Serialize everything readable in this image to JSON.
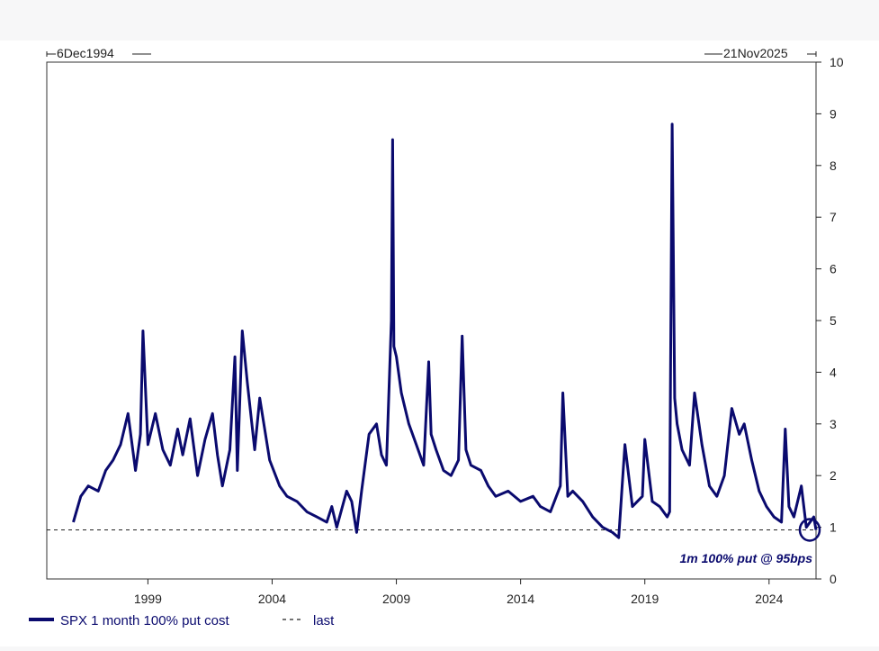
{
  "chart_data": {
    "type": "line",
    "start_label": "6Dec1994",
    "end_label": "21Nov2025",
    "x_range": [
      1994.93,
      2025.89
    ],
    "ylim": [
      0,
      10
    ],
    "y_ticks": [
      0,
      1,
      2,
      3,
      4,
      5,
      6,
      7,
      8,
      9,
      10
    ],
    "x_ticks": [
      1999,
      2004,
      2009,
      2014,
      2019,
      2024
    ],
    "x_tick_labels": [
      "1999",
      "2004",
      "2009",
      "2014",
      "2019",
      "2024"
    ],
    "reference_line": {
      "name": "last",
      "value": 0.95,
      "style": "dashed"
    },
    "annotation": "1m 100% put @ 95bps",
    "legend_position": "bottom-left",
    "grid": false,
    "series": [
      {
        "name": "SPX 1 month 100% put cost",
        "color": "#0a0a6e",
        "x": [
          1996.0,
          1996.3,
          1996.6,
          1997.0,
          1997.3,
          1997.6,
          1997.9,
          1998.2,
          1998.5,
          1998.7,
          1998.8,
          1999.0,
          1999.3,
          1999.6,
          1999.9,
          2000.2,
          2000.4,
          2000.7,
          2001.0,
          2001.3,
          2001.6,
          2001.8,
          2002.0,
          2002.3,
          2002.5,
          2002.6,
          2002.8,
          2003.0,
          2003.3,
          2003.5,
          2003.9,
          2004.3,
          2004.6,
          2005.0,
          2005.4,
          2005.8,
          2006.2,
          2006.4,
          2006.6,
          2007.0,
          2007.2,
          2007.4,
          2007.6,
          2007.9,
          2008.2,
          2008.4,
          2008.6,
          2008.8,
          2008.85,
          2008.9,
          2009.0,
          2009.2,
          2009.5,
          2009.8,
          2010.1,
          2010.3,
          2010.4,
          2010.6,
          2010.9,
          2011.2,
          2011.5,
          2011.65,
          2011.8,
          2012.0,
          2012.4,
          2012.7,
          2013.0,
          2013.5,
          2014.0,
          2014.5,
          2014.8,
          2015.2,
          2015.6,
          2015.7,
          2015.9,
          2016.1,
          2016.5,
          2016.9,
          2017.3,
          2017.7,
          2017.95,
          2018.1,
          2018.2,
          2018.5,
          2018.9,
          2019.0,
          2019.3,
          2019.6,
          2019.9,
          2020.0,
          2020.1,
          2020.2,
          2020.3,
          2020.5,
          2020.8,
          2021.0,
          2021.3,
          2021.6,
          2021.9,
          2022.2,
          2022.5,
          2022.8,
          2023.0,
          2023.3,
          2023.6,
          2023.9,
          2024.2,
          2024.5,
          2024.65,
          2024.8,
          2025.0,
          2025.3,
          2025.5,
          2025.8,
          2025.89
        ],
        "y": [
          1.1,
          1.6,
          1.8,
          1.7,
          2.1,
          2.3,
          2.6,
          3.2,
          2.1,
          2.8,
          4.8,
          2.6,
          3.2,
          2.5,
          2.2,
          2.9,
          2.4,
          3.1,
          2.0,
          2.7,
          3.2,
          2.4,
          1.8,
          2.5,
          4.3,
          2.1,
          4.8,
          3.8,
          2.5,
          3.5,
          2.3,
          1.8,
          1.6,
          1.5,
          1.3,
          1.2,
          1.1,
          1.4,
          1.0,
          1.7,
          1.5,
          0.9,
          1.7,
          2.8,
          3.0,
          2.4,
          2.2,
          5.0,
          8.5,
          4.5,
          4.3,
          3.6,
          3.0,
          2.6,
          2.2,
          4.2,
          2.8,
          2.5,
          2.1,
          2.0,
          2.3,
          4.7,
          2.5,
          2.2,
          2.1,
          1.8,
          1.6,
          1.7,
          1.5,
          1.6,
          1.4,
          1.3,
          1.8,
          3.6,
          1.6,
          1.7,
          1.5,
          1.2,
          1.0,
          0.9,
          0.8,
          1.9,
          2.6,
          1.4,
          1.6,
          2.7,
          1.5,
          1.4,
          1.2,
          1.3,
          8.8,
          3.5,
          3.0,
          2.5,
          2.2,
          3.6,
          2.6,
          1.8,
          1.6,
          2.0,
          3.3,
          2.8,
          3.0,
          2.3,
          1.7,
          1.4,
          1.2,
          1.1,
          2.9,
          1.4,
          1.2,
          1.8,
          1.0,
          1.2,
          0.95
        ]
      }
    ]
  }
}
